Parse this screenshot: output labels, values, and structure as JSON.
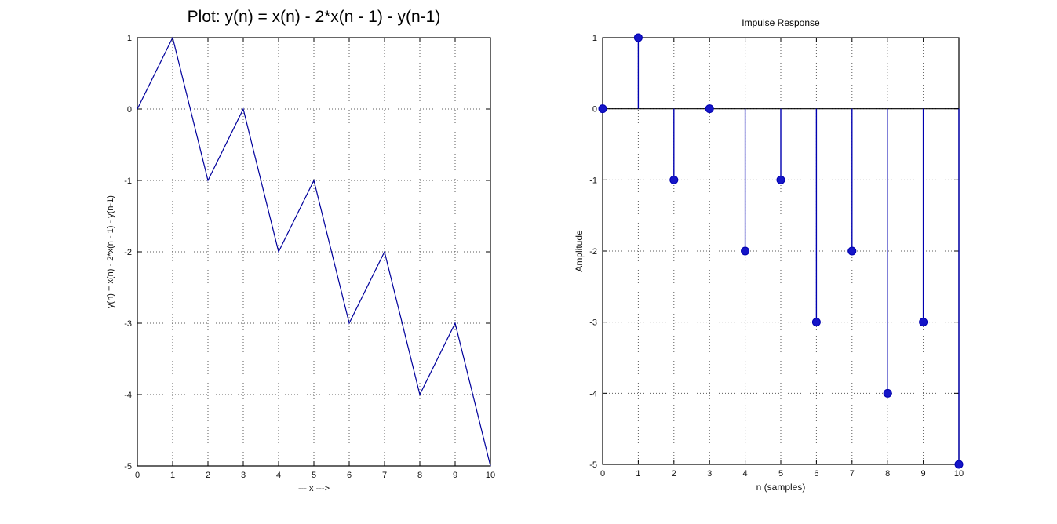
{
  "figure": {
    "background": "#ffffff",
    "line_color": "#00009c",
    "stem_color": "#0000b0",
    "marker_color": "#1515c8"
  },
  "chart_data": [
    {
      "type": "line",
      "title": "Plot: y(n) =  x(n) - 2*x(n - 1) - y(n-1)",
      "xlabel": "--- x --->",
      "ylabel": "y(n) =  x(n) - 2*x(n - 1) - y(n-1)",
      "x": [
        0,
        1,
        2,
        3,
        4,
        5,
        6,
        7,
        8,
        9,
        10
      ],
      "y": [
        0,
        1,
        -1,
        0,
        -2,
        -1,
        -3,
        -2,
        -4,
        -3,
        -5
      ],
      "xlim": [
        0,
        10
      ],
      "ylim": [
        -5,
        1
      ],
      "xticks": [
        0,
        1,
        2,
        3,
        4,
        5,
        6,
        7,
        8,
        9,
        10
      ],
      "yticks": [
        1,
        0,
        -1,
        -2,
        -3,
        -4,
        -5
      ],
      "grid": "dotted",
      "legend": "none",
      "line_color": "#00009c"
    },
    {
      "type": "stem",
      "title": "Impulse Response",
      "xlabel": "n (samples)",
      "ylabel": "Amplitude",
      "x": [
        0,
        1,
        2,
        3,
        4,
        5,
        6,
        7,
        8,
        9,
        10
      ],
      "y": [
        0,
        1,
        -1,
        0,
        -2,
        -1,
        -3,
        -2,
        -4,
        -3,
        -5
      ],
      "xlim": [
        0,
        10
      ],
      "ylim": [
        -5,
        1
      ],
      "xticks": [
        0,
        1,
        2,
        3,
        4,
        5,
        6,
        7,
        8,
        9,
        10
      ],
      "yticks": [
        1,
        0,
        -1,
        -2,
        -3,
        -4,
        -5
      ],
      "grid": "dotted",
      "legend": "none",
      "baseline": 0,
      "baseline_color": "#000000",
      "stem_color": "#0000b0",
      "marker_color": "#1515c8"
    }
  ]
}
